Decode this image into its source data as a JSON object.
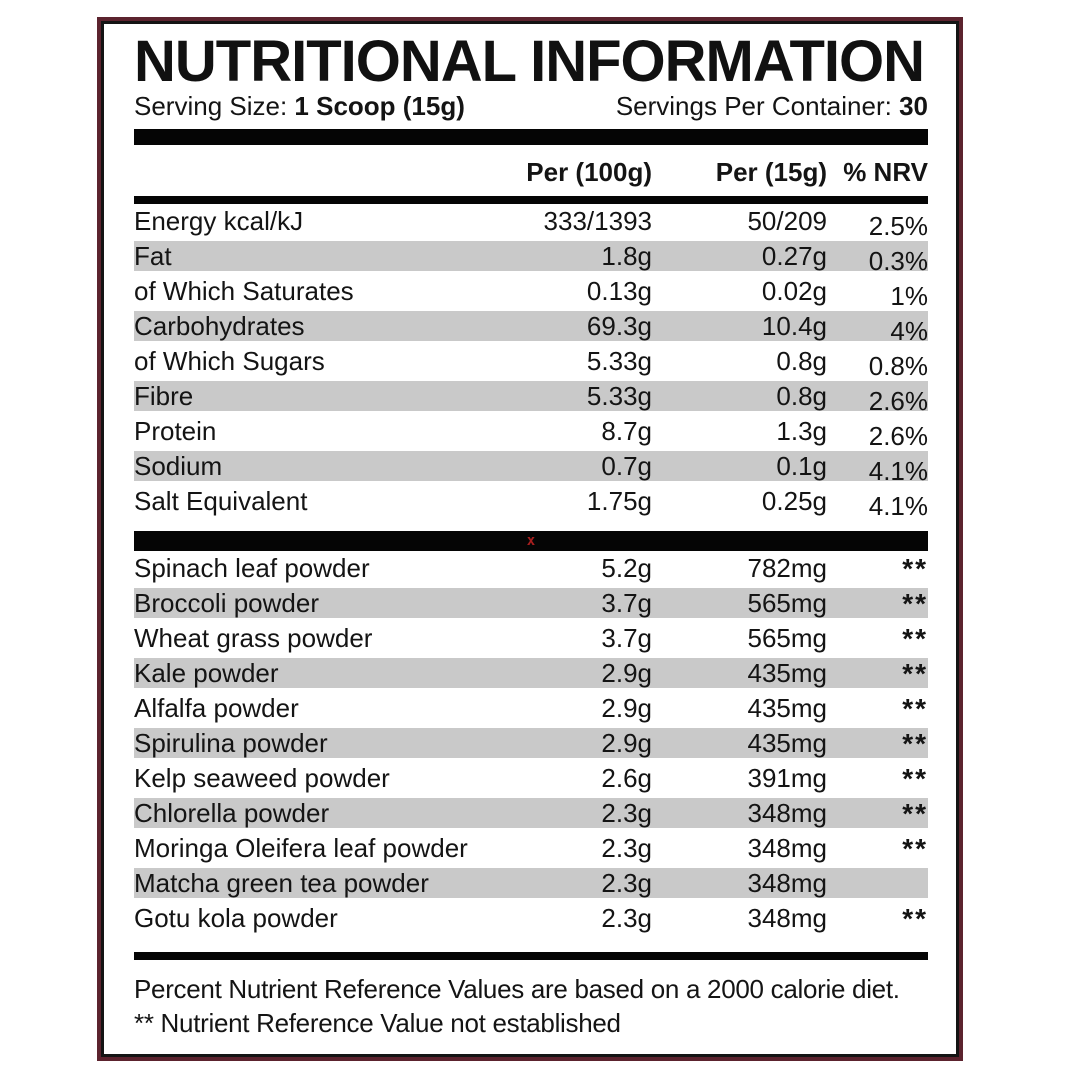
{
  "header": {
    "title": "NUTRITIONAL INFORMATION",
    "serving_size_label": "Serving Size:",
    "serving_size_value": "1 Scoop (15g)",
    "servings_label": "Servings Per Container:",
    "servings_value": "30"
  },
  "columns": {
    "per_100": "Per (100g)",
    "per_15": "Per (15g)",
    "nrv": "% NRV"
  },
  "nutrients": [
    {
      "name": "Energy kcal/kJ",
      "per100": "333/1393",
      "per15": "50/209",
      "nrv": "2.5%"
    },
    {
      "name": "Fat",
      "per100": "1.8g",
      "per15": "0.27g",
      "nrv": "0.3%"
    },
    {
      "name": "of Which Saturates",
      "per100": "0.13g",
      "per15": "0.02g",
      "nrv": "1%"
    },
    {
      "name": "Carbohydrates",
      "per100": "69.3g",
      "per15": "10.4g",
      "nrv": "4%"
    },
    {
      "name": "of Which Sugars",
      "per100": "5.33g",
      "per15": "0.8g",
      "nrv": "0.8%"
    },
    {
      "name": "Fibre",
      "per100": "5.33g",
      "per15": "0.8g",
      "nrv": "2.6%"
    },
    {
      "name": "Protein",
      "per100": "8.7g",
      "per15": "1.3g",
      "nrv": "2.6%"
    },
    {
      "name": "Sodium",
      "per100": "0.7g",
      "per15": "0.1g",
      "nrv": "4.1%"
    },
    {
      "name": "Salt Equivalent",
      "per100": "1.75g",
      "per15": "0.25g",
      "nrv": "4.1%"
    }
  ],
  "ingredients": [
    {
      "name": "Spinach leaf powder",
      "per100": "5.2g",
      "per15": "782mg",
      "nrv": "**"
    },
    {
      "name": "Broccoli powder",
      "per100": "3.7g",
      "per15": "565mg",
      "nrv": "**"
    },
    {
      "name": "Wheat grass powder",
      "per100": "3.7g",
      "per15": "565mg",
      "nrv": "**"
    },
    {
      "name": "Kale powder",
      "per100": "2.9g",
      "per15": "435mg",
      "nrv": "**"
    },
    {
      "name": "Alfalfa powder",
      "per100": "2.9g",
      "per15": "435mg",
      "nrv": "**"
    },
    {
      "name": "Spirulina powder",
      "per100": "2.9g",
      "per15": "435mg",
      "nrv": "**"
    },
    {
      "name": "Kelp seaweed powder",
      "per100": "2.6g",
      "per15": "391mg",
      "nrv": "**"
    },
    {
      "name": "Chlorella powder",
      "per100": "2.3g",
      "per15": "348mg",
      "nrv": "**"
    },
    {
      "name": "Moringa Oleifera leaf powder",
      "per100": "2.3g",
      "per15": "348mg",
      "nrv": "**"
    },
    {
      "name": "Matcha green tea powder",
      "per100": "2.3g",
      "per15": "348mg",
      "nrv": ""
    },
    {
      "name": "Gotu kola powder",
      "per100": "2.3g",
      "per15": "348mg",
      "nrv": "**"
    }
  ],
  "divider_marker": "x",
  "footnotes": {
    "line1": "Percent Nutrient Reference Values are based on a 2000 calorie diet.",
    "line2": "** Nutrient Reference Value not established"
  },
  "colors": {
    "border_outer": "#5c232e",
    "border_inner": "#141414",
    "row_shade": "#c9c9c9",
    "bar": "#050505",
    "text": "#141414",
    "marker_red": "#a81f1f"
  }
}
